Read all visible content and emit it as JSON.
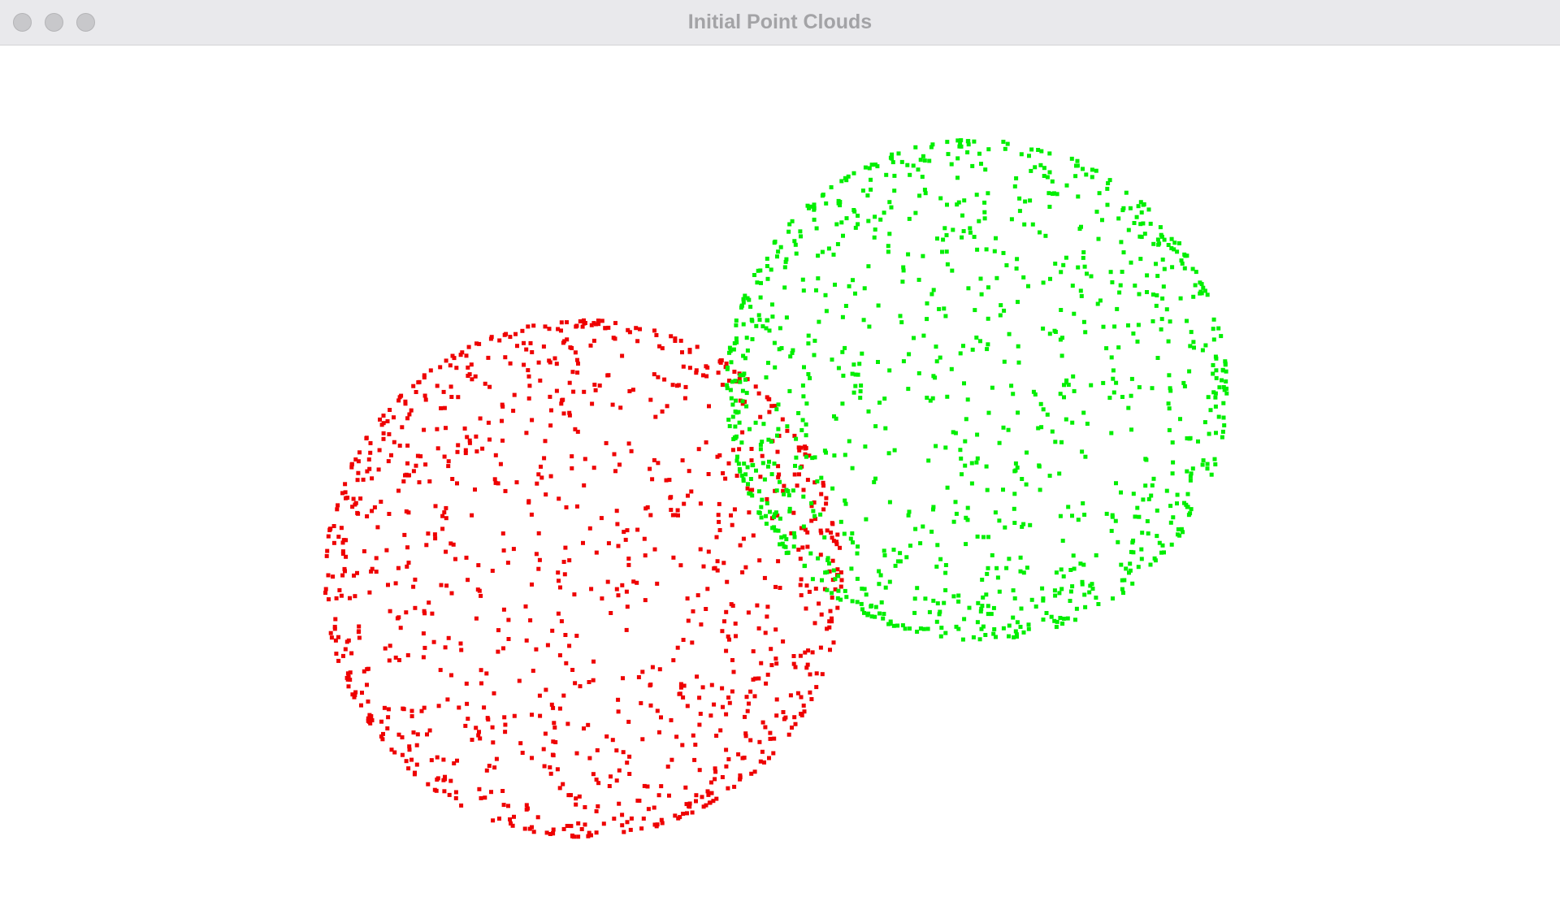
{
  "window": {
    "title": "Initial Point Clouds",
    "background": "#ffffff"
  },
  "traffic_lights": [
    "close-button",
    "minimize-button",
    "zoom-button"
  ],
  "point_clouds": [
    {
      "name": "source-cloud",
      "color": "#ee0000",
      "point_count": 1100
    },
    {
      "name": "target-cloud",
      "color": "#00ee00",
      "point_count": 1100
    }
  ]
}
